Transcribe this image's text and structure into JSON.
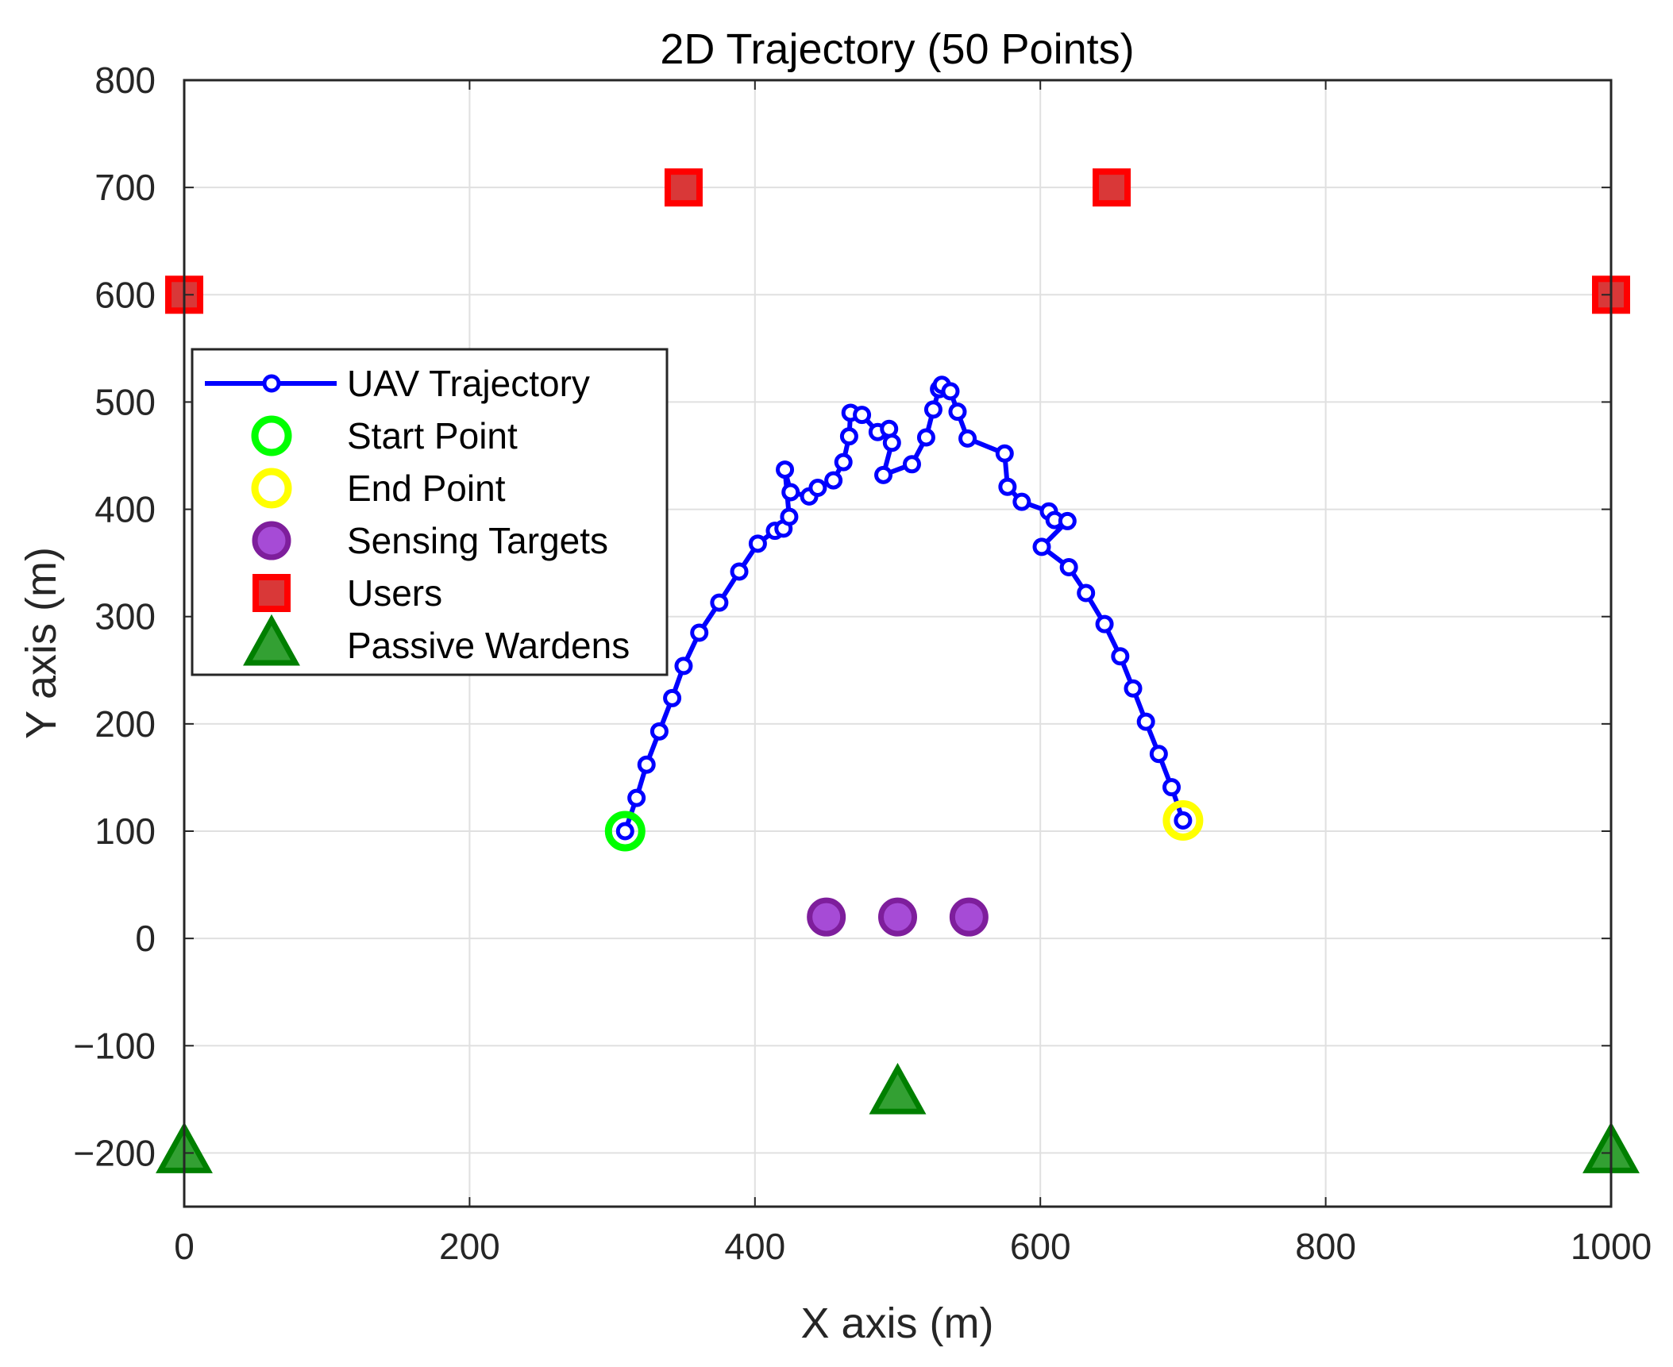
{
  "chart_data": {
    "type": "scatter",
    "title": "2D Trajectory (50 Points)",
    "xlabel": "X axis (m)",
    "ylabel": "Y axis (m)",
    "xlim": [
      0,
      1000
    ],
    "ylim": [
      -250,
      800
    ],
    "xticks": [
      0,
      200,
      400,
      600,
      800,
      1000
    ],
    "yticks": [
      -200,
      -100,
      0,
      100,
      200,
      300,
      400,
      500,
      600,
      700,
      800
    ],
    "ytick_labels": [
      "−200",
      "−100",
      "0",
      "100",
      "200",
      "300",
      "400",
      "500",
      "600",
      "700",
      "800"
    ],
    "grid": true,
    "legend_position": "upper-left",
    "series": [
      {
        "name": "UAV Trajectory",
        "kind": "line-markers",
        "color": "#0000ff",
        "x": [
          309,
          317,
          324,
          333,
          342,
          350,
          361,
          375,
          389,
          402,
          414,
          420,
          424,
          421,
          425,
          438,
          444,
          455,
          462,
          466,
          467,
          475,
          486,
          494,
          496,
          490,
          510,
          520,
          525,
          529,
          531,
          537,
          542,
          549,
          575,
          577,
          587,
          606,
          610,
          619,
          601,
          620,
          632,
          645,
          656,
          665,
          674,
          683,
          692,
          700
        ],
        "y": [
          100,
          131,
          162,
          193,
          224,
          254,
          285,
          313,
          342,
          368,
          380,
          382,
          393,
          437,
          416,
          412,
          420,
          427,
          444,
          468,
          490,
          488,
          472,
          475,
          462,
          432,
          442,
          467,
          493,
          512,
          516,
          510,
          491,
          466,
          452,
          421,
          407,
          398,
          390,
          389,
          365,
          346,
          322,
          293,
          263,
          233,
          202,
          172,
          141,
          110
        ]
      },
      {
        "name": "Start Point",
        "kind": "circle-open",
        "color": "#00ff00",
        "x": [
          309
        ],
        "y": [
          100
        ]
      },
      {
        "name": "End Point",
        "kind": "circle-open",
        "color": "#ffff00",
        "x": [
          700
        ],
        "y": [
          110
        ]
      },
      {
        "name": "Sensing Targets",
        "kind": "circle-filled",
        "color": "#7e1e9c",
        "fill": "#a64bd6",
        "x": [
          450,
          500,
          550
        ],
        "y": [
          20,
          20,
          20
        ]
      },
      {
        "name": "Users",
        "kind": "square",
        "color": "#ff0000",
        "fill": "#d93838",
        "x": [
          0,
          350,
          650,
          1000
        ],
        "y": [
          600,
          700,
          700,
          600
        ]
      },
      {
        "name": "Passive Wardens",
        "kind": "triangle",
        "color": "#007f00",
        "fill": "#33a033",
        "x": [
          0,
          500,
          1000
        ],
        "y": [
          -200,
          -145,
          -200
        ]
      }
    ]
  }
}
